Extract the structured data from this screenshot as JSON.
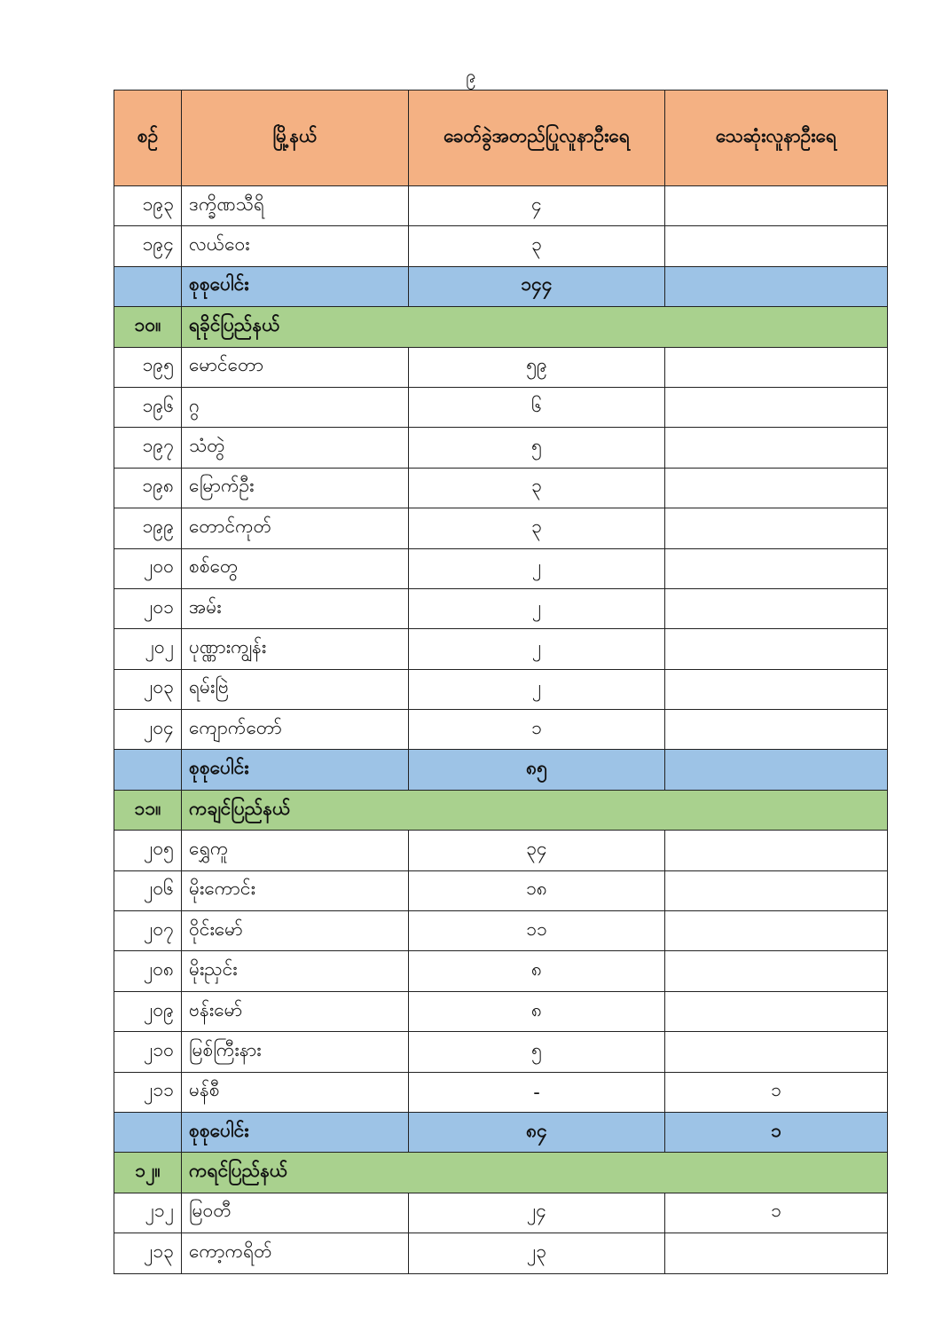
{
  "page_number": "၉",
  "colors": {
    "header": "#F4B183",
    "total_row": "#9DC3E6",
    "section_row": "#A9D18E"
  },
  "table": {
    "headers": [
      "စဉ်",
      "မြို့နယ်",
      "ခေတ်ခွဲအတည်ပြုလူနာဦးရေ",
      "သေဆုံးလူနာဦးရေ"
    ],
    "rows": [
      {
        "type": "data",
        "no": "၁၉၃",
        "name": "ဒက္ခိဏသီရိ",
        "confirmed": "၄",
        "deaths": ""
      },
      {
        "type": "data",
        "no": "၁၉၄",
        "name": "လယ်ဝေး",
        "confirmed": "၃",
        "deaths": ""
      },
      {
        "type": "total",
        "no": "",
        "name": "စုစုပေါင်း",
        "confirmed": "၁၄၄",
        "deaths": ""
      },
      {
        "type": "section",
        "no": "၁၀။",
        "name": "ရခိုင်ပြည်နယ်"
      },
      {
        "type": "data",
        "no": "၁၉၅",
        "name": "မောင်တော",
        "confirmed": "၅၉",
        "deaths": ""
      },
      {
        "type": "data",
        "no": "၁၉၆",
        "name": "ဂွ",
        "confirmed": "၆",
        "deaths": ""
      },
      {
        "type": "data",
        "no": "၁၉၇",
        "name": "သံတွဲ",
        "confirmed": "၅",
        "deaths": ""
      },
      {
        "type": "data",
        "no": "၁၉၈",
        "name": "မြောက်ဦး",
        "confirmed": "၃",
        "deaths": ""
      },
      {
        "type": "data",
        "no": "၁၉၉",
        "name": "တောင်ကုတ်",
        "confirmed": "၃",
        "deaths": ""
      },
      {
        "type": "data",
        "no": "၂၀၀",
        "name": "စစ်တွေ",
        "confirmed": "၂",
        "deaths": ""
      },
      {
        "type": "data",
        "no": "၂၀၁",
        "name": "အမ်း",
        "confirmed": "၂",
        "deaths": ""
      },
      {
        "type": "data",
        "no": "၂၀၂",
        "name": "ပုဏ္ဏားကျွန်း",
        "confirmed": "၂",
        "deaths": ""
      },
      {
        "type": "data",
        "no": "၂၀၃",
        "name": "ရမ်းဗြဲ",
        "confirmed": "၂",
        "deaths": ""
      },
      {
        "type": "data",
        "no": "၂၀၄",
        "name": "ကျောက်တော်",
        "confirmed": "၁",
        "deaths": ""
      },
      {
        "type": "total",
        "no": "",
        "name": "စုစုပေါင်း",
        "confirmed": "၈၅",
        "deaths": ""
      },
      {
        "type": "section",
        "no": "၁၁။",
        "name": "ကချင်ပြည်နယ်"
      },
      {
        "type": "data",
        "no": "၂၀၅",
        "name": "ရွှေကူ",
        "confirmed": "၃၄",
        "deaths": ""
      },
      {
        "type": "data",
        "no": "၂၀၆",
        "name": "မိုးကောင်း",
        "confirmed": "၁၈",
        "deaths": ""
      },
      {
        "type": "data",
        "no": "၂၀၇",
        "name": "ဝိုင်းမော်",
        "confirmed": "၁၁",
        "deaths": ""
      },
      {
        "type": "data",
        "no": "၂၀၈",
        "name": "မိုးညှင်း",
        "confirmed": "၈",
        "deaths": ""
      },
      {
        "type": "data",
        "no": "၂၀၉",
        "name": "ဗန်းမော်",
        "confirmed": "၈",
        "deaths": ""
      },
      {
        "type": "data",
        "no": "၂၁၀",
        "name": "မြစ်ကြီးနား",
        "confirmed": "၅",
        "deaths": ""
      },
      {
        "type": "data",
        "no": "၂၁၁",
        "name": "မန်စီ",
        "confirmed": "-",
        "deaths": "၁"
      },
      {
        "type": "total",
        "no": "",
        "name": "စုစုပေါင်း",
        "confirmed": "၈၄",
        "deaths": "၁"
      },
      {
        "type": "section",
        "no": "၁၂။",
        "name": "ကရင်ပြည်နယ်"
      },
      {
        "type": "data",
        "no": "၂၁၂",
        "name": "မြဝတီ",
        "confirmed": "၂၄",
        "deaths": "၁"
      },
      {
        "type": "data",
        "no": "၂၁၃",
        "name": "ကော့ကရိတ်",
        "confirmed": "၂၃",
        "deaths": ""
      }
    ]
  }
}
